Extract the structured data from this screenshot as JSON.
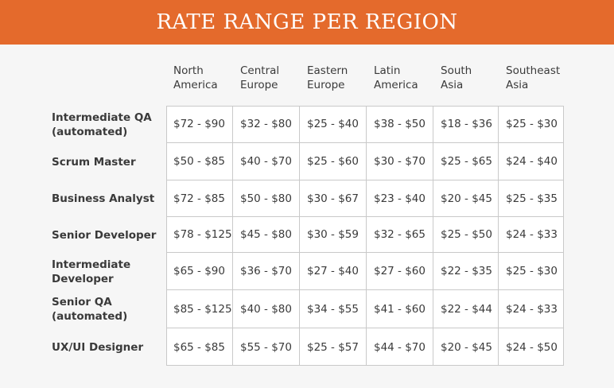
{
  "banner": {
    "title": "RATE RANGE PER REGION"
  },
  "chart_data": {
    "type": "table",
    "title": "RATE RANGE PER REGION",
    "columns": [
      "North\nAmerica",
      "Central\nEurope",
      "Eastern\nEurope",
      "Latin\nAmerica",
      "South\nAsia",
      "Southeast\nAsia"
    ],
    "rows": [
      {
        "role": "Intermediate QA\n(automated)",
        "values": [
          "$72 - $90",
          "$32 - $80",
          "$25 - $40",
          "$38 - $50",
          "$18 - $36",
          "$25 - $30"
        ]
      },
      {
        "role": "Scrum Master",
        "values": [
          "$50 - $85",
          "$40 - $70",
          "$25 - $60",
          "$30 - $70",
          "$25 - $65",
          "$24 - $40"
        ]
      },
      {
        "role": "Business Analyst",
        "values": [
          "$72 - $85",
          "$50 - $80",
          "$30 - $67",
          "$23 - $40",
          "$20 - $45",
          "$25 - $35"
        ]
      },
      {
        "role": "Senior Developer",
        "values": [
          "$78 - $125",
          "$45 - $80",
          "$30 - $59",
          "$32 - $65",
          "$25 - $50",
          "$24 - $33"
        ]
      },
      {
        "role": "Intermediate\nDeveloper",
        "values": [
          "$65 - $90",
          "$36 - $70",
          "$27 - $40",
          "$27 - $60",
          "$22 - $35",
          "$25 - $30"
        ]
      },
      {
        "role": "Senior QA\n(automated)",
        "values": [
          "$85 - $125",
          "$40 - $80",
          "$34 - $55",
          "$41 - $60",
          "$22 - $44",
          "$24 - $33"
        ]
      },
      {
        "role": "UX/UI Designer",
        "values": [
          "$65 - $85",
          "$55 - $70",
          "$25 - $57",
          "$44 - $70",
          "$20 - $45",
          "$24 - $50"
        ]
      }
    ]
  },
  "colors": {
    "banner": "#e46a2c",
    "background": "#f6f6f6",
    "text": "#3a3a3a",
    "grid_line": "#c9c9c9"
  }
}
